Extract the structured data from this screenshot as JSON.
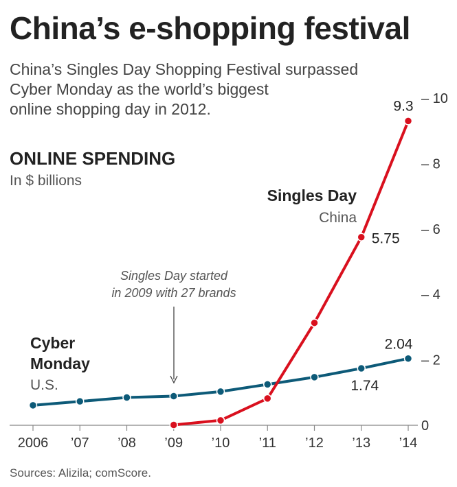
{
  "header": {
    "title": "China’s e-shopping festival",
    "subtitle_lines": [
      "China’s Singles Day Shopping Festival surpassed",
      "Cyber Monday as the world’s biggest",
      "online shopping day in 2012."
    ]
  },
  "section": {
    "heading": "ONLINE SPENDING",
    "unit": "In $ billions"
  },
  "source": "Sources: Alizila; comScore.",
  "annotation": {
    "lines": [
      "Singles Day started",
      "in 2009 with 27 brands"
    ]
  },
  "colors": {
    "cyber_monday": "#0d5a78",
    "singles_day": "#d9101e",
    "axis": "#888888",
    "text": "#222222"
  },
  "chart_data": {
    "type": "line",
    "title": "Online spending",
    "ylabel": "In $ billions",
    "xlabel": "",
    "x": [
      "2006",
      "’07",
      "’08",
      "’09",
      "’10",
      "’11",
      "’12",
      "’13",
      "’14"
    ],
    "ylim": [
      0,
      10
    ],
    "yticks": [
      {
        "value": 0,
        "label": "0"
      },
      {
        "value": 2,
        "label": "– 2"
      },
      {
        "value": 4,
        "label": "– 4"
      },
      {
        "value": 6,
        "label": "– 6"
      },
      {
        "value": 8,
        "label": "– 8"
      },
      {
        "value": 10,
        "label": "– 10"
      }
    ],
    "series": [
      {
        "name": "Cyber Monday",
        "label_lines": [
          "Cyber",
          "Monday"
        ],
        "sublabel": "U.S.",
        "values": [
          0.61,
          0.73,
          0.85,
          0.89,
          1.03,
          1.25,
          1.47,
          1.74,
          2.04
        ]
      },
      {
        "name": "Singles Day",
        "label_lines": [
          "Singles Day"
        ],
        "sublabel": "China",
        "values": [
          null,
          null,
          null,
          0.01,
          0.15,
          0.82,
          3.13,
          5.75,
          9.3
        ]
      }
    ],
    "data_labels": [
      {
        "series": 0,
        "index": 7,
        "text": "1.74"
      },
      {
        "series": 0,
        "index": 8,
        "text": "2.04"
      },
      {
        "series": 1,
        "index": 7,
        "text": "5.75"
      },
      {
        "series": 1,
        "index": 8,
        "text": "9.3"
      }
    ],
    "legend": "inline labels"
  }
}
